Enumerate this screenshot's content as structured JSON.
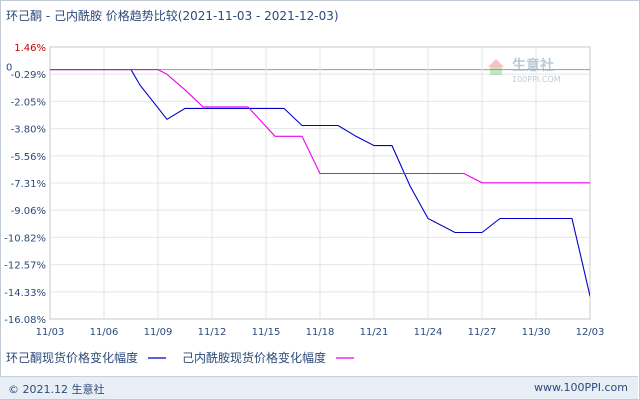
{
  "title": {
    "main": "环己酮 - 己内酰胺 价格趋势比较",
    "range": "(2021-11-03 - 2021-12-03)"
  },
  "watermark": {
    "brand": "生意社",
    "url": "100PPI.COM"
  },
  "footer": {
    "left": "© 2021.12 生意社",
    "right": "www.100PPI.com"
  },
  "chart_data": {
    "type": "line",
    "x_ticks": [
      "11/03",
      "11/06",
      "11/09",
      "11/12",
      "11/15",
      "11/18",
      "11/21",
      "11/24",
      "11/27",
      "11/30",
      "12/03"
    ],
    "y_ticks": [
      "1.46%",
      "-0.29%",
      "-2.05%",
      "-3.80%",
      "-5.56%",
      "-7.31%",
      "-9.06%",
      "-10.82%",
      "-12.57%",
      "-14.33%",
      "-16.08%"
    ],
    "y_tick_values": [
      1.46,
      -0.29,
      -2.05,
      -3.8,
      -5.56,
      -7.31,
      -9.06,
      -10.82,
      -12.57,
      -14.33,
      -16.08
    ],
    "zero_label": "0",
    "ylim": [
      -16.08,
      1.46
    ],
    "xlim": [
      0,
      30
    ],
    "grid": true,
    "legend_position": "bottom",
    "series": [
      {
        "name": "环己酮现货价格变化幅度",
        "color": "#0000cc",
        "points": [
          [
            0,
            0
          ],
          [
            4.5,
            0
          ],
          [
            5,
            -1.0
          ],
          [
            6.5,
            -3.2
          ],
          [
            7.5,
            -2.5
          ],
          [
            8.5,
            -2.5
          ],
          [
            11,
            -2.5
          ],
          [
            12,
            -2.5
          ],
          [
            13,
            -2.5
          ],
          [
            14,
            -3.6
          ],
          [
            16,
            -3.6
          ],
          [
            17,
            -4.3
          ],
          [
            18,
            -4.9
          ],
          [
            19,
            -4.9
          ],
          [
            20,
            -7.5
          ],
          [
            21,
            -9.6
          ],
          [
            22.5,
            -10.5
          ],
          [
            24,
            -10.5
          ],
          [
            25,
            -9.6
          ],
          [
            29,
            -9.6
          ],
          [
            30,
            -14.6
          ],
          [
            32,
            -14.6
          ]
        ]
      },
      {
        "name": "己内酰胺现货价格变化幅度",
        "color": "#ee00ee",
        "points": [
          [
            0,
            0
          ],
          [
            6,
            0
          ],
          [
            6.5,
            -0.3
          ],
          [
            7.5,
            -1.3
          ],
          [
            8.5,
            -2.4
          ],
          [
            10,
            -2.4
          ],
          [
            11,
            -2.4
          ],
          [
            12.5,
            -4.3
          ],
          [
            14,
            -4.3
          ],
          [
            15,
            -6.7
          ],
          [
            20,
            -6.7
          ],
          [
            23,
            -6.7
          ],
          [
            24,
            -7.3
          ],
          [
            32,
            -7.3
          ]
        ]
      }
    ]
  }
}
